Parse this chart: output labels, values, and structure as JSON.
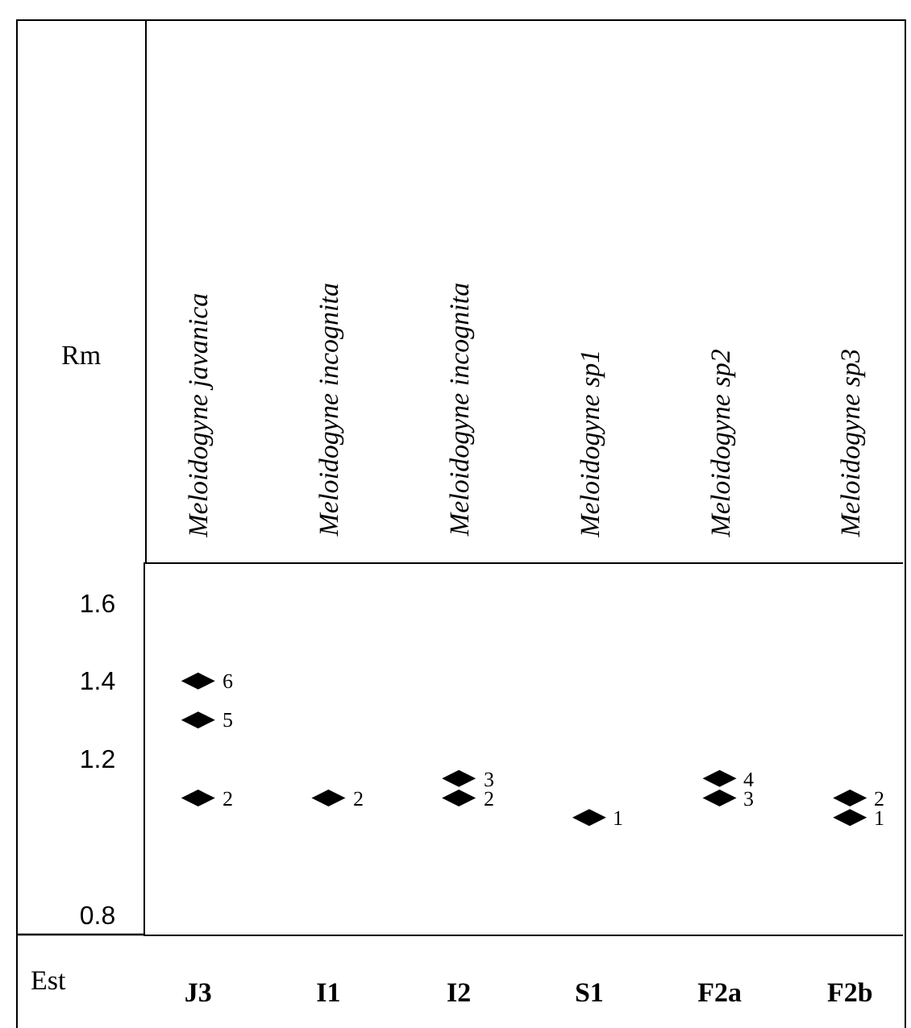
{
  "chart_data": {
    "type": "scatter",
    "xlabel": "Est",
    "categories": [
      "J3",
      "I1",
      "I2",
      "S1",
      "F2a",
      "F2b"
    ],
    "annotations": [
      "Meloidogyne javanica",
      "Meloidogyne incognita",
      "Meloidogyne incognita",
      "Meloidogyne sp1",
      "Meloidogyne sp2",
      "Meloidogyne sp3",
      "Rm",
      {
        "text": "6",
        "x": "J3",
        "y": 1.4
      },
      {
        "text": "5",
        "x": "J3",
        "y": 1.3
      },
      {
        "text": "2",
        "x": "J3",
        "y": 1.1
      },
      {
        "text": "2",
        "x": "I1",
        "y": 1.1
      },
      {
        "text": "3",
        "x": "I2",
        "y": 1.15
      },
      {
        "text": "2",
        "x": "I2",
        "y": 1.1
      },
      {
        "text": "1",
        "x": "S1",
        "y": 1.05
      },
      {
        "text": "4",
        "x": "F2a",
        "y": 1.15
      },
      {
        "text": "3",
        "x": "F2a",
        "y": 1.1
      },
      {
        "text": "2",
        "x": "F2b",
        "y": 1.1
      },
      {
        "text": "1",
        "x": "F2b",
        "y": 1.05
      }
    ],
    "series": [
      {
        "color": "#000000",
        "x": [
          "J3",
          "J3",
          "J3",
          "I1",
          "I2",
          "I2",
          "S1",
          "F2a",
          "F2a",
          "F2b",
          "F2b"
        ],
        "values": [
          1.4,
          1.3,
          1.1,
          1.1,
          1.15,
          1.1,
          1.05,
          1.15,
          1.1,
          1.1,
          1.05
        ]
      }
    ],
    "ylim": [
      0.75,
      1.7
    ],
    "yticks": [
      0.8,
      1.2,
      1.4,
      1.6
    ],
    "grid": false,
    "marker": "diamond"
  }
}
